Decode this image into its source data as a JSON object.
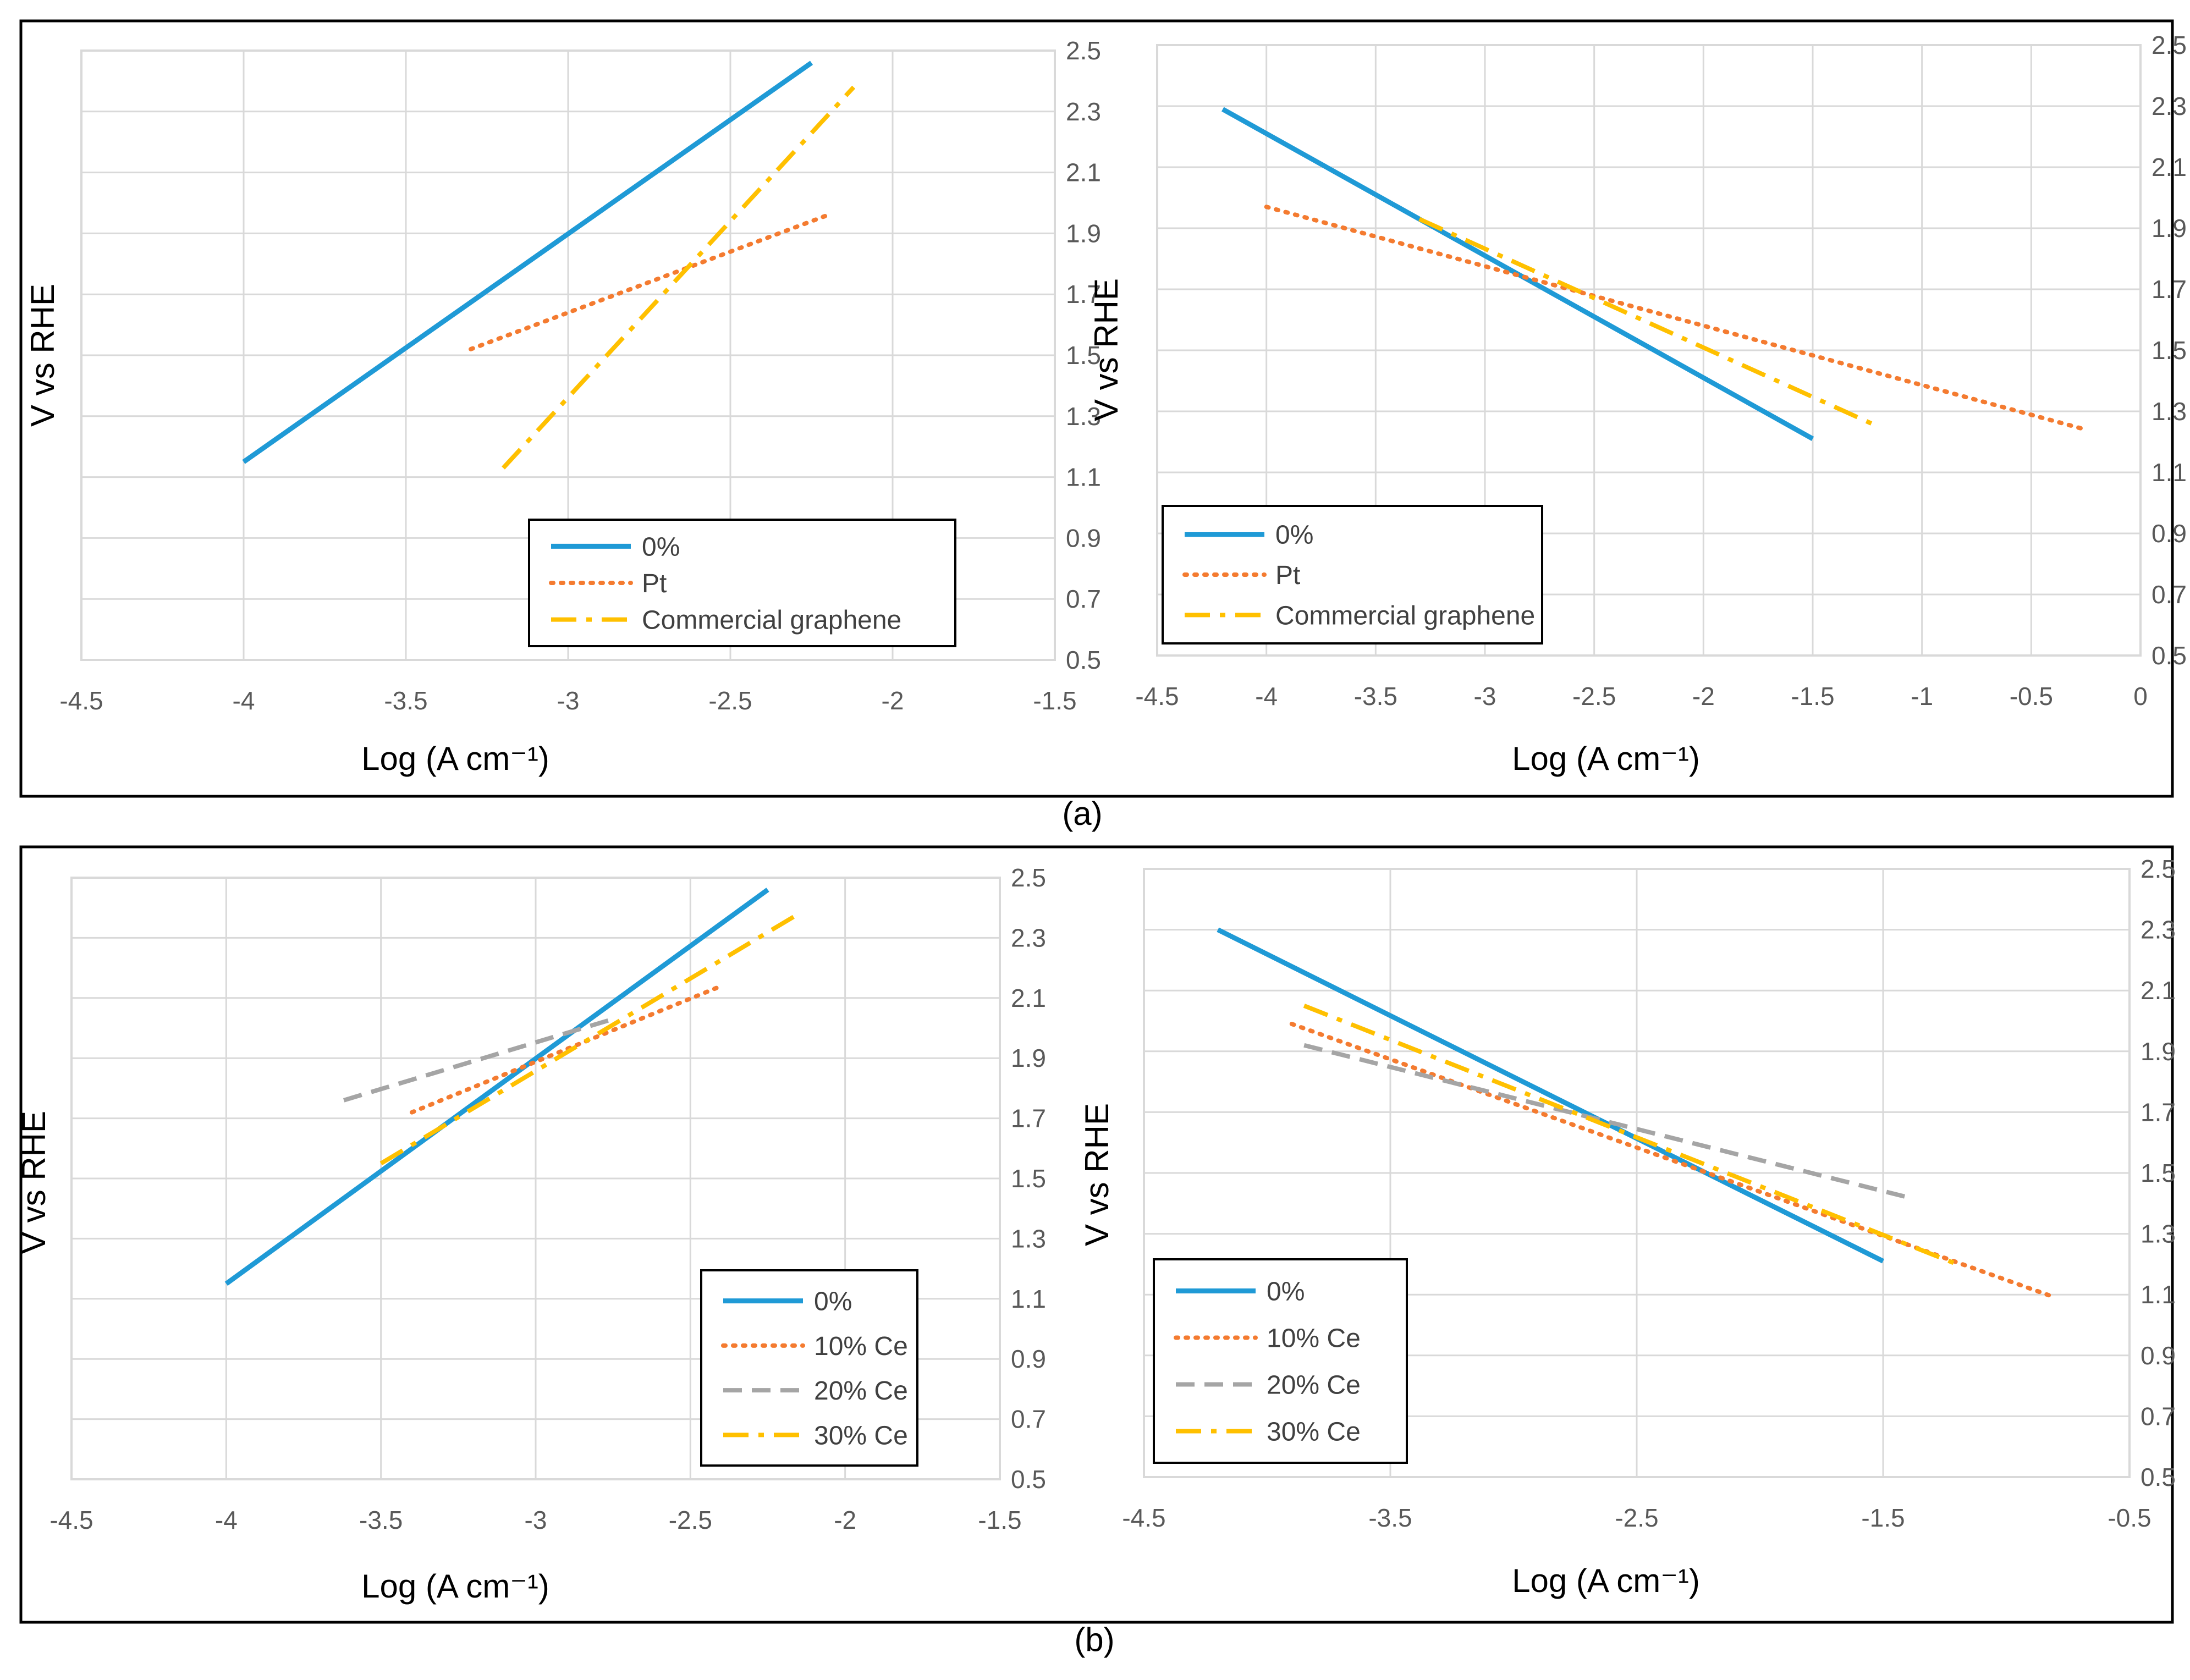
{
  "panel_labels": [
    "(a)",
    "(b)"
  ],
  "colors": {
    "zero": "#1f9ad6",
    "orange": "#f47b30",
    "gray": "#a5a5a5",
    "gold": "#ffc000"
  },
  "chart_data": [
    {
      "type": "line",
      "panel": "(a)",
      "xlabel": "Log (A cm⁻¹)",
      "ylabel": "V vs RHE",
      "xlim": [
        -4.5,
        -1.5
      ],
      "ylim": [
        0.5,
        2.5
      ],
      "xticks": [
        "-4.5",
        "-4",
        "-3.5",
        "-3",
        "-2.5",
        "-2",
        "-1.5"
      ],
      "yticks": [
        "0.5",
        "0.7",
        "0.9",
        "1.1",
        "1.3",
        "1.5",
        "1.7",
        "1.9",
        "2.1",
        "2.3",
        "2.5"
      ],
      "grid": true,
      "legend_position": "bottom-right",
      "series": [
        {
          "name": "0%",
          "color": "#1f9ad6",
          "style": "solid",
          "x": [
            -4.0,
            -2.25
          ],
          "y": [
            1.15,
            2.46
          ]
        },
        {
          "name": "Pt",
          "color": "#f47b30",
          "style": "dotted",
          "x": [
            -3.3,
            -2.2
          ],
          "y": [
            1.52,
            1.96
          ]
        },
        {
          "name": "Commercial graphene",
          "color": "#ffc000",
          "style": "dashdot",
          "x": [
            -3.2,
            -2.12
          ],
          "y": [
            1.13,
            2.38
          ]
        }
      ]
    },
    {
      "type": "line",
      "panel": "(a)",
      "xlabel": "Log (A cm⁻¹)",
      "ylabel": "V vs RHE",
      "xlim": [
        -4.5,
        0
      ],
      "ylim": [
        0.5,
        2.5
      ],
      "xticks": [
        "-4.5",
        "-4",
        "-3.5",
        "-3",
        "-2.5",
        "-2",
        "-1.5",
        "-1",
        "-0.5",
        "0"
      ],
      "yticks": [
        "0.5",
        "0.7",
        "0.9",
        "1.1",
        "1.3",
        "1.5",
        "1.7",
        "1.9",
        "2.1",
        "2.3",
        "2.5"
      ],
      "grid": true,
      "legend_position": "bottom-left",
      "series": [
        {
          "name": "0%",
          "color": "#1f9ad6",
          "style": "solid",
          "x": [
            -4.2,
            -1.5
          ],
          "y": [
            2.29,
            1.21
          ]
        },
        {
          "name": "Pt",
          "color": "#f47b30",
          "style": "dotted",
          "x": [
            -4.0,
            -0.25
          ],
          "y": [
            1.97,
            1.24
          ]
        },
        {
          "name": "Commercial graphene",
          "color": "#ffc000",
          "style": "dashdot",
          "x": [
            -3.3,
            -1.2
          ],
          "y": [
            1.93,
            1.25
          ]
        }
      ]
    },
    {
      "type": "line",
      "panel": "(b)",
      "xlabel": "Log (A cm⁻¹)",
      "ylabel": "V vs RHE",
      "xlim": [
        -4.5,
        -1.5
      ],
      "ylim": [
        0.5,
        2.5
      ],
      "xticks": [
        "-4.5",
        "-4",
        "-3.5",
        "-3",
        "-2.5",
        "-2",
        "-1.5"
      ],
      "yticks": [
        "0.5",
        "0.7",
        "0.9",
        "1.1",
        "1.3",
        "1.5",
        "1.7",
        "1.9",
        "2.1",
        "2.3",
        "2.5"
      ],
      "grid": true,
      "legend_position": "bottom-right",
      "series": [
        {
          "name": "0%",
          "color": "#1f9ad6",
          "style": "solid",
          "x": [
            -4.0,
            -2.25
          ],
          "y": [
            1.15,
            2.46
          ]
        },
        {
          "name": "10% Ce",
          "color": "#f47b30",
          "style": "dotted",
          "x": [
            -3.4,
            -2.4
          ],
          "y": [
            1.72,
            2.14
          ]
        },
        {
          "name": "20% Ce",
          "color": "#a5a5a5",
          "style": "dashed",
          "x": [
            -3.62,
            -2.75
          ],
          "y": [
            1.76,
            2.03
          ]
        },
        {
          "name": "30% Ce",
          "color": "#ffc000",
          "style": "dashdot",
          "x": [
            -3.5,
            -2.15
          ],
          "y": [
            1.55,
            2.38
          ]
        }
      ]
    },
    {
      "type": "line",
      "panel": "(b)",
      "xlabel": "Log (A cm⁻¹)",
      "ylabel": "V vs RHE",
      "xlim": [
        -4.5,
        -0.5
      ],
      "ylim": [
        0.5,
        2.5
      ],
      "xticks": [
        "-4.5",
        "-3.5",
        "-2.5",
        "-1.5",
        "-0.5"
      ],
      "yticks": [
        "0.5",
        "0.7",
        "0.9",
        "1.1",
        "1.3",
        "1.5",
        "1.7",
        "1.9",
        "2.1",
        "2.3",
        "2.5"
      ],
      "grid": true,
      "legend_position": "bottom-left",
      "series": [
        {
          "name": "0%",
          "color": "#1f9ad6",
          "style": "solid",
          "x": [
            -4.2,
            -1.5
          ],
          "y": [
            2.3,
            1.21
          ]
        },
        {
          "name": "10% Ce",
          "color": "#f47b30",
          "style": "dotted",
          "x": [
            -3.9,
            -0.8
          ],
          "y": [
            1.99,
            1.09
          ]
        },
        {
          "name": "20% Ce",
          "color": "#a5a5a5",
          "style": "dashed",
          "x": [
            -3.85,
            -1.4
          ],
          "y": [
            1.92,
            1.42
          ]
        },
        {
          "name": "30% Ce",
          "color": "#ffc000",
          "style": "dashdot",
          "x": [
            -3.85,
            -1.2
          ],
          "y": [
            2.05,
            1.2
          ]
        }
      ]
    }
  ]
}
